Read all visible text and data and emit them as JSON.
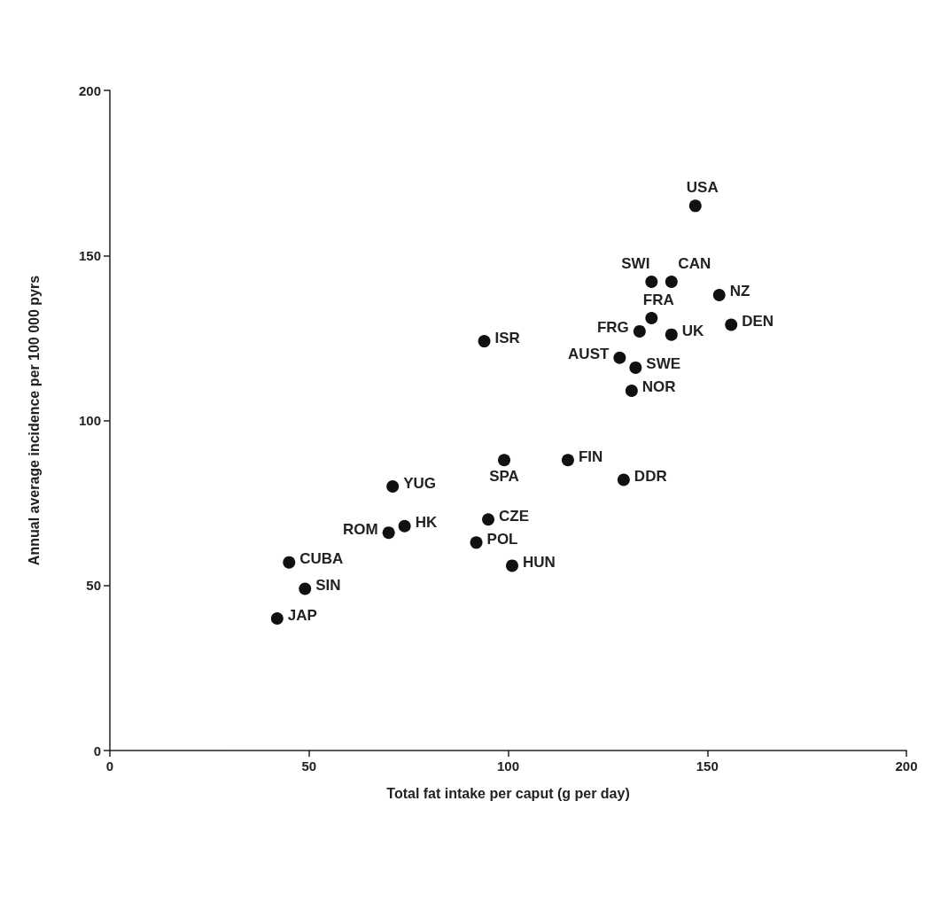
{
  "chart_data": {
    "type": "scatter",
    "xlabel": "Total fat intake per caput (g per day)",
    "ylabel": "Annual average incidence per 100 000 pyrs",
    "x": [
      147,
      136,
      141,
      153,
      136,
      156,
      133,
      141,
      94,
      128,
      132,
      131,
      115,
      99,
      129,
      71,
      95,
      74,
      70,
      92,
      45,
      101,
      49,
      42
    ],
    "values": [
      165,
      142,
      142,
      138,
      131,
      129,
      127,
      126,
      124,
      119,
      116,
      109,
      88,
      88,
      82,
      80,
      70,
      68,
      66,
      63,
      57,
      56,
      49,
      40
    ],
    "color": "#111111",
    "marker": "circle",
    "grid": false,
    "xlim": [
      0,
      200
    ],
    "xticks": [
      0,
      50,
      100,
      150,
      200
    ],
    "ylim": [
      0,
      200
    ],
    "yticks": [
      0,
      50,
      100,
      150,
      200
    ],
    "annotations": [
      {
        "text": "USA",
        "x": 147,
        "y": 165
      },
      {
        "text": "SWI",
        "x": 136,
        "y": 142
      },
      {
        "text": "CAN",
        "x": 141,
        "y": 142
      },
      {
        "text": "NZ",
        "x": 153,
        "y": 138
      },
      {
        "text": "FRA",
        "x": 136,
        "y": 131
      },
      {
        "text": "DEN",
        "x": 156,
        "y": 129
      },
      {
        "text": "FRG",
        "x": 133,
        "y": 127
      },
      {
        "text": "UK",
        "x": 141,
        "y": 126
      },
      {
        "text": "ISR",
        "x": 94,
        "y": 124
      },
      {
        "text": "AUST",
        "x": 128,
        "y": 119
      },
      {
        "text": "SWE",
        "x": 132,
        "y": 116
      },
      {
        "text": "NOR",
        "x": 131,
        "y": 109
      },
      {
        "text": "FIN",
        "x": 115,
        "y": 88
      },
      {
        "text": "SPA",
        "x": 99,
        "y": 88
      },
      {
        "text": "DDR",
        "x": 129,
        "y": 82
      },
      {
        "text": "YUG",
        "x": 71,
        "y": 80
      },
      {
        "text": "CZE",
        "x": 95,
        "y": 70
      },
      {
        "text": "HK",
        "x": 74,
        "y": 68
      },
      {
        "text": "ROM",
        "x": 70,
        "y": 66
      },
      {
        "text": "POL",
        "x": 92,
        "y": 63
      },
      {
        "text": "CUBA",
        "x": 45,
        "y": 57
      },
      {
        "text": "HUN",
        "x": 101,
        "y": 56
      },
      {
        "text": "SIN",
        "x": 49,
        "y": 49
      },
      {
        "text": "JAP",
        "x": 42,
        "y": 40
      }
    ]
  }
}
